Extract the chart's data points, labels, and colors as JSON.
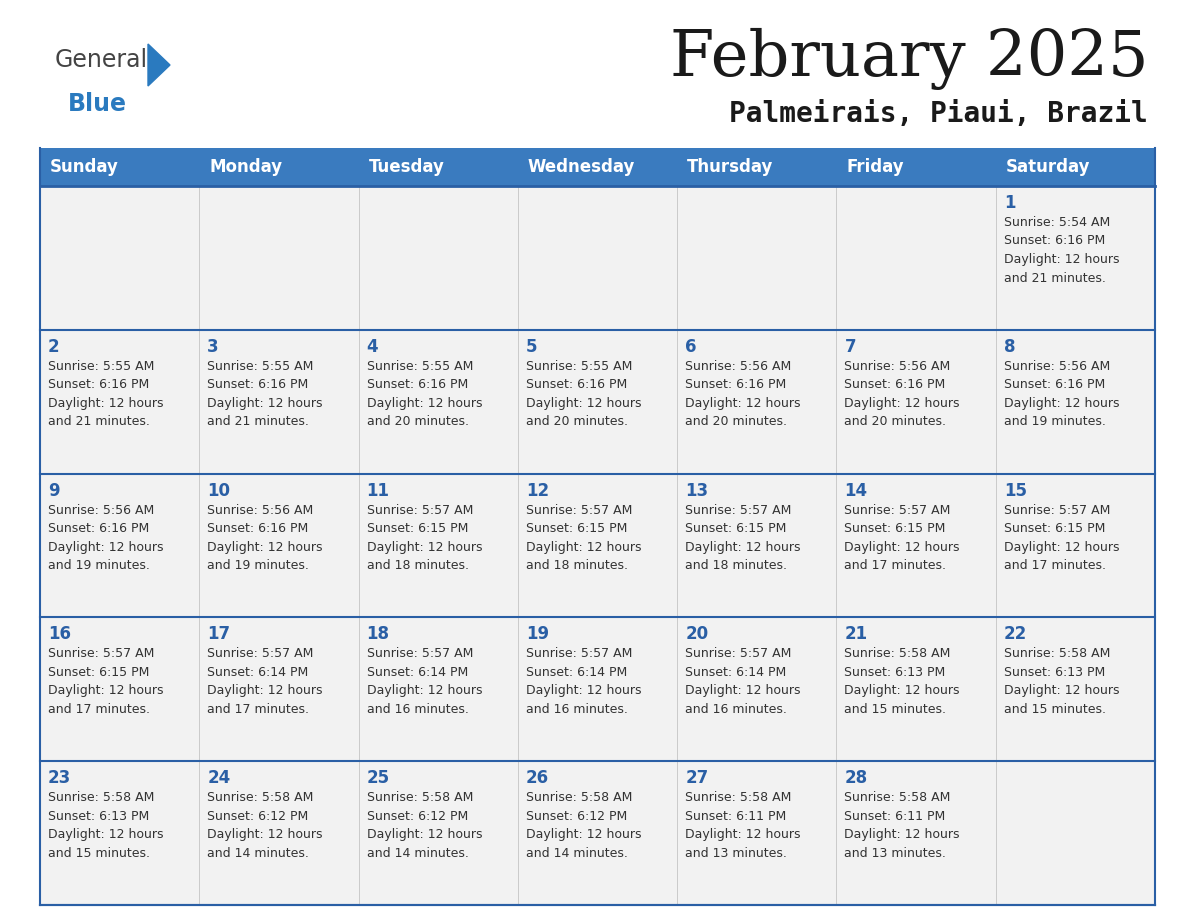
{
  "title": "February 2025",
  "subtitle": "Palmeirais, Piaui, Brazil",
  "header_bg": "#3a7bbf",
  "header_text_color": "#ffffff",
  "cell_bg": "#f2f2f2",
  "day_number_color": "#2a5fa5",
  "info_text_color": "#333333",
  "border_color": "#2a5fa5",
  "days_of_week": [
    "Sunday",
    "Monday",
    "Tuesday",
    "Wednesday",
    "Thursday",
    "Friday",
    "Saturday"
  ],
  "logo_general_color": "#555555",
  "logo_blue_color": "#2a7abf",
  "logo_triangle_color": "#2a7abf",
  "weeks": [
    [
      {
        "day": null,
        "info": null
      },
      {
        "day": null,
        "info": null
      },
      {
        "day": null,
        "info": null
      },
      {
        "day": null,
        "info": null
      },
      {
        "day": null,
        "info": null
      },
      {
        "day": null,
        "info": null
      },
      {
        "day": 1,
        "info": "Sunrise: 5:54 AM\nSunset: 6:16 PM\nDaylight: 12 hours\nand 21 minutes."
      }
    ],
    [
      {
        "day": 2,
        "info": "Sunrise: 5:55 AM\nSunset: 6:16 PM\nDaylight: 12 hours\nand 21 minutes."
      },
      {
        "day": 3,
        "info": "Sunrise: 5:55 AM\nSunset: 6:16 PM\nDaylight: 12 hours\nand 21 minutes."
      },
      {
        "day": 4,
        "info": "Sunrise: 5:55 AM\nSunset: 6:16 PM\nDaylight: 12 hours\nand 20 minutes."
      },
      {
        "day": 5,
        "info": "Sunrise: 5:55 AM\nSunset: 6:16 PM\nDaylight: 12 hours\nand 20 minutes."
      },
      {
        "day": 6,
        "info": "Sunrise: 5:56 AM\nSunset: 6:16 PM\nDaylight: 12 hours\nand 20 minutes."
      },
      {
        "day": 7,
        "info": "Sunrise: 5:56 AM\nSunset: 6:16 PM\nDaylight: 12 hours\nand 20 minutes."
      },
      {
        "day": 8,
        "info": "Sunrise: 5:56 AM\nSunset: 6:16 PM\nDaylight: 12 hours\nand 19 minutes."
      }
    ],
    [
      {
        "day": 9,
        "info": "Sunrise: 5:56 AM\nSunset: 6:16 PM\nDaylight: 12 hours\nand 19 minutes."
      },
      {
        "day": 10,
        "info": "Sunrise: 5:56 AM\nSunset: 6:16 PM\nDaylight: 12 hours\nand 19 minutes."
      },
      {
        "day": 11,
        "info": "Sunrise: 5:57 AM\nSunset: 6:15 PM\nDaylight: 12 hours\nand 18 minutes."
      },
      {
        "day": 12,
        "info": "Sunrise: 5:57 AM\nSunset: 6:15 PM\nDaylight: 12 hours\nand 18 minutes."
      },
      {
        "day": 13,
        "info": "Sunrise: 5:57 AM\nSunset: 6:15 PM\nDaylight: 12 hours\nand 18 minutes."
      },
      {
        "day": 14,
        "info": "Sunrise: 5:57 AM\nSunset: 6:15 PM\nDaylight: 12 hours\nand 17 minutes."
      },
      {
        "day": 15,
        "info": "Sunrise: 5:57 AM\nSunset: 6:15 PM\nDaylight: 12 hours\nand 17 minutes."
      }
    ],
    [
      {
        "day": 16,
        "info": "Sunrise: 5:57 AM\nSunset: 6:15 PM\nDaylight: 12 hours\nand 17 minutes."
      },
      {
        "day": 17,
        "info": "Sunrise: 5:57 AM\nSunset: 6:14 PM\nDaylight: 12 hours\nand 17 minutes."
      },
      {
        "day": 18,
        "info": "Sunrise: 5:57 AM\nSunset: 6:14 PM\nDaylight: 12 hours\nand 16 minutes."
      },
      {
        "day": 19,
        "info": "Sunrise: 5:57 AM\nSunset: 6:14 PM\nDaylight: 12 hours\nand 16 minutes."
      },
      {
        "day": 20,
        "info": "Sunrise: 5:57 AM\nSunset: 6:14 PM\nDaylight: 12 hours\nand 16 minutes."
      },
      {
        "day": 21,
        "info": "Sunrise: 5:58 AM\nSunset: 6:13 PM\nDaylight: 12 hours\nand 15 minutes."
      },
      {
        "day": 22,
        "info": "Sunrise: 5:58 AM\nSunset: 6:13 PM\nDaylight: 12 hours\nand 15 minutes."
      }
    ],
    [
      {
        "day": 23,
        "info": "Sunrise: 5:58 AM\nSunset: 6:13 PM\nDaylight: 12 hours\nand 15 minutes."
      },
      {
        "day": 24,
        "info": "Sunrise: 5:58 AM\nSunset: 6:12 PM\nDaylight: 12 hours\nand 14 minutes."
      },
      {
        "day": 25,
        "info": "Sunrise: 5:58 AM\nSunset: 6:12 PM\nDaylight: 12 hours\nand 14 minutes."
      },
      {
        "day": 26,
        "info": "Sunrise: 5:58 AM\nSunset: 6:12 PM\nDaylight: 12 hours\nand 14 minutes."
      },
      {
        "day": 27,
        "info": "Sunrise: 5:58 AM\nSunset: 6:11 PM\nDaylight: 12 hours\nand 13 minutes."
      },
      {
        "day": 28,
        "info": "Sunrise: 5:58 AM\nSunset: 6:11 PM\nDaylight: 12 hours\nand 13 minutes."
      },
      {
        "day": null,
        "info": null
      }
    ]
  ]
}
